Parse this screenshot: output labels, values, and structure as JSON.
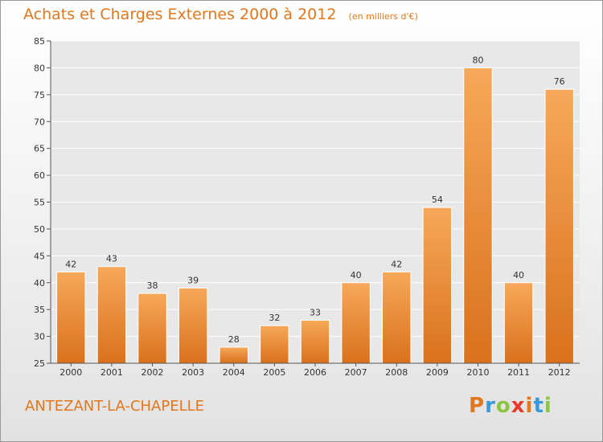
{
  "chart_data": {
    "type": "bar",
    "title": "Achats et Charges Externes 2000 à 2012",
    "unit": "(en milliers d'€)",
    "categories": [
      "2000",
      "2001",
      "2002",
      "2003",
      "2004",
      "2005",
      "2006",
      "2007",
      "2008",
      "2009",
      "2010",
      "2011",
      "2012"
    ],
    "values": [
      42,
      43,
      38,
      39,
      28,
      32,
      33,
      40,
      42,
      54,
      80,
      40,
      76
    ],
    "ylim": [
      25,
      85
    ],
    "yticks": [
      25,
      30,
      35,
      40,
      45,
      50,
      55,
      60,
      65,
      70,
      75,
      80,
      85
    ],
    "grid": true,
    "xlabel": "",
    "ylabel": "",
    "colors": {
      "bar_light": "#f7a85a",
      "bar_dark": "#d9711c",
      "title": "#e07820"
    }
  },
  "commune": "ANTEZANT-LA-CHAPELLE",
  "logo": {
    "text": "Proxiti",
    "letter_colors": [
      "#e07820",
      "#3a9ad9",
      "#8cc63f",
      "#e8392a",
      "#e07820",
      "#3a9ad9",
      "#8cc63f"
    ]
  }
}
